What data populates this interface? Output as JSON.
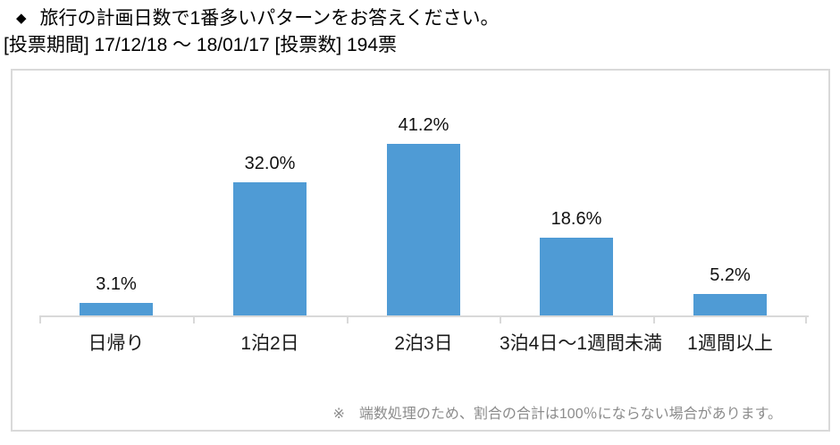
{
  "header": {
    "bullet": "◆",
    "title": "旅行の計画日数で1番多いパターンをお答えください。",
    "subtitle": "[投票期間] 17/12/18 ～ 18/01/17 [投票数] 194票"
  },
  "chart_data": {
    "type": "bar",
    "title": "旅行の計画日数で1番多いパターンをお答えください。",
    "vote_period": "17/12/18 ～ 18/01/17",
    "vote_count": "194票",
    "categories": [
      "日帰り",
      "1泊2日",
      "2泊3日",
      "3泊4日～1週間未満",
      "1週間以上"
    ],
    "values": [
      3.1,
      32.0,
      41.2,
      18.6,
      5.2
    ],
    "value_labels": [
      "3.1%",
      "32.0%",
      "41.2%",
      "18.6%",
      "5.2%"
    ],
    "xlabel": "",
    "ylabel": "",
    "ylim": [
      0,
      45
    ],
    "grid": false,
    "legend": false,
    "bar_color": "#4F9BD5",
    "axis_color": "#D9D9D9"
  },
  "footnote": "※　端数処理のため、割合の合計は100％にならない場合があります。"
}
